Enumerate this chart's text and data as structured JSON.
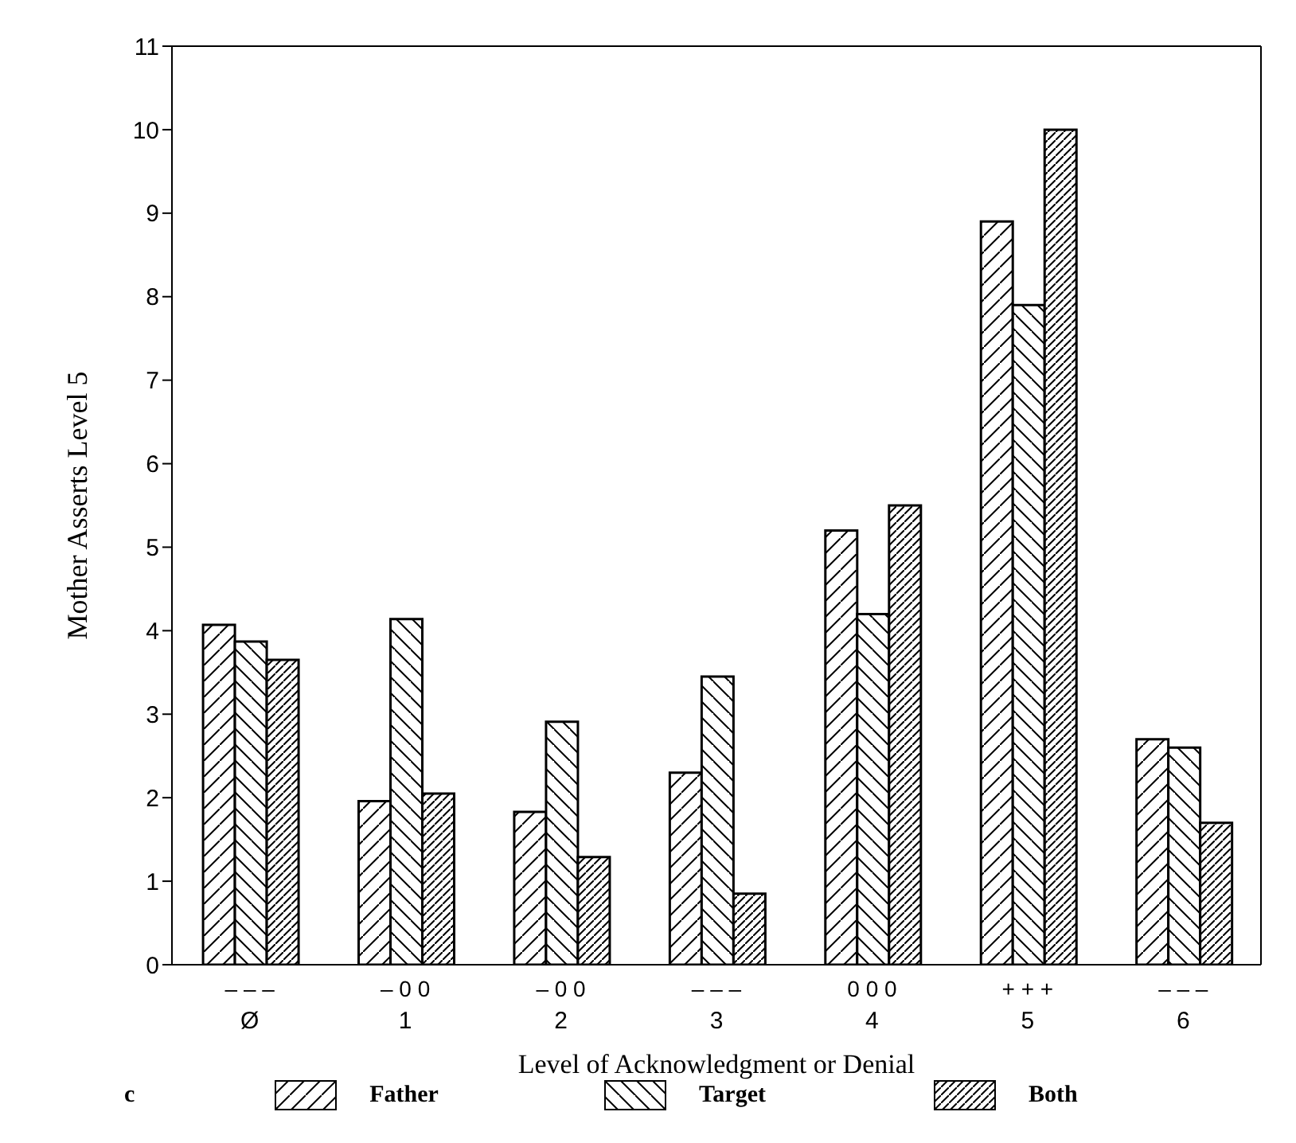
{
  "chart_data": {
    "type": "bar",
    "xlabel": "Level of Acknowledgment or Denial",
    "ylabel": "Mother Asserts Level 5",
    "categories": [
      "Ø",
      "1",
      "2",
      "3",
      "4",
      "5",
      "6"
    ],
    "series": [
      {
        "name": "Father",
        "color": "#000000",
        "values": [
          4.07,
          1.96,
          1.83,
          2.3,
          5.2,
          8.9,
          2.7
        ]
      },
      {
        "name": "Target",
        "color": "#000000",
        "values": [
          3.87,
          4.14,
          2.91,
          3.45,
          4.2,
          7.9,
          2.6
        ]
      },
      {
        "name": "Both",
        "color": "#000000",
        "values": [
          3.65,
          2.05,
          1.29,
          0.85,
          5.5,
          10.0,
          1.7
        ]
      }
    ],
    "ylim": [
      0,
      11
    ],
    "yticks": [
      0,
      1,
      2,
      3,
      4,
      5,
      6,
      7,
      8,
      9,
      10,
      11
    ],
    "grid": false,
    "legend": "bottom",
    "annotations": [
      "–   –   –",
      "–   0   0",
      "–   0   0",
      "–   –   –",
      "0   0   0",
      "+   +   +",
      "–   –   –",
      "c"
    ]
  }
}
